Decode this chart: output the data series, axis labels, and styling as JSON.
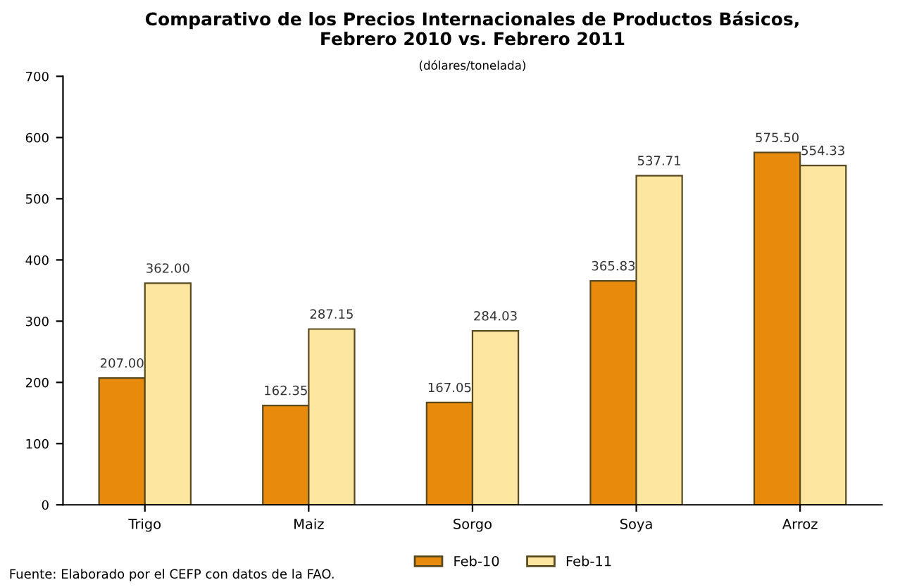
{
  "chart_data": {
    "type": "bar",
    "title": "Comparativo de los Precios Internacionales de Productos Básicos,\nFebrero 2010 vs. Febrero 2011",
    "subtitle": "(dólares/tonelada)",
    "categories": [
      "Trigo",
      "Maiz",
      "Sorgo",
      "Soya",
      "Arroz"
    ],
    "series": [
      {
        "name": "Feb-10",
        "color": "#e88a0c",
        "values": [
          207.0,
          162.35,
          167.05,
          365.83,
          575.5
        ],
        "value_labels": [
          "207.00",
          "162.35",
          "167.05",
          "365.83",
          "575.50"
        ]
      },
      {
        "name": "Feb-11",
        "color": "#fde6a0",
        "values": [
          362.0,
          287.15,
          284.03,
          537.71,
          554.33
        ],
        "value_labels": [
          "362.00",
          "287.15",
          "284.03",
          "537.71",
          "554.33"
        ]
      }
    ],
    "ylim": [
      0,
      700
    ],
    "yticks": [
      0,
      100,
      200,
      300,
      400,
      500,
      600,
      700
    ],
    "grid": false,
    "legend": "bottom",
    "annotations": [
      "Fuente: Elaborado por el CEFP con datos de la FAO."
    ]
  }
}
